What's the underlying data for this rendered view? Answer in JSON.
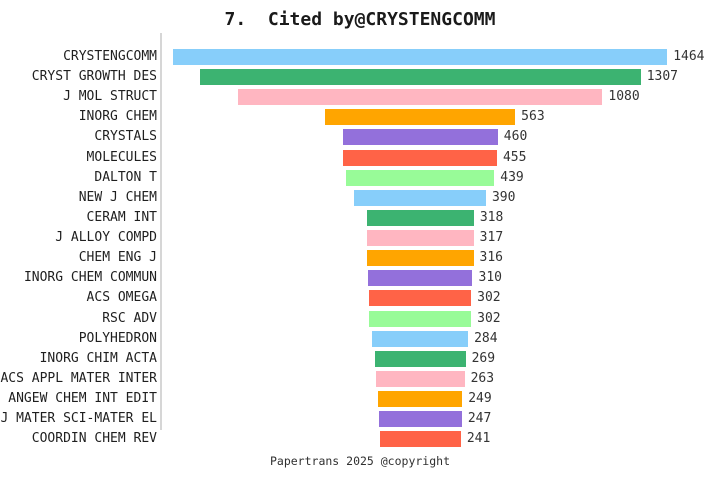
{
  "page": {
    "background_color": "#ffffff"
  },
  "footer": {
    "text": "Papertrans 2025 @copyright"
  },
  "chart_data": {
    "type": "bar",
    "variant": "horizontal-centered-funnel",
    "title": "7.  Cited by@CRYSTENGCOMM",
    "categories": [
      "CRYSTENGCOMM",
      "CRYST GROWTH DES",
      "J MOL STRUCT",
      "INORG CHEM",
      "CRYSTALS",
      "MOLECULES",
      "DALTON T",
      "NEW J CHEM",
      "CERAM INT",
      "J ALLOY COMPD",
      "CHEM ENG J",
      "INORG CHEM COMMUN",
      "ACS OMEGA",
      "RSC ADV",
      "POLYHEDRON",
      "INORG CHIM ACTA",
      "ACS APPL MATER INTER",
      "ANGEW CHEM INT EDIT",
      "J MATER SCI-MATER EL",
      "COORDIN CHEM REV"
    ],
    "values": [
      1464,
      1307,
      1080,
      563,
      460,
      455,
      439,
      390,
      318,
      317,
      316,
      310,
      302,
      302,
      284,
      269,
      263,
      249,
      247,
      241
    ],
    "palette": [
      "#87CEFA",
      "#3CB371",
      "#FFB6C1",
      "#FFA500",
      "#9370DB",
      "#FF6347",
      "#98FB98"
    ],
    "max_value": 1464,
    "value_labels_shown": true,
    "grid": false,
    "legend": false,
    "axis_line_color": "#d6d6d6",
    "xlabel": "",
    "ylabel": ""
  }
}
